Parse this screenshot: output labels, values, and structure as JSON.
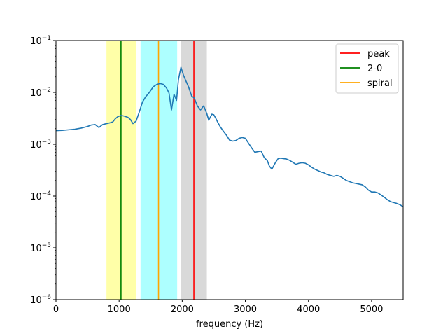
{
  "chart_data": {
    "type": "line",
    "title": "",
    "xlabel": "frequency (Hz)",
    "ylabel": "",
    "xlim": [
      0,
      5500
    ],
    "ylim": [
      1e-06,
      0.1
    ],
    "yscale": "log",
    "grid": false,
    "legend_placement": "top-right",
    "x_ticks": [
      {
        "value": 0,
        "label": "0"
      },
      {
        "value": 1000,
        "label": "1000"
      },
      {
        "value": 2000,
        "label": "2000"
      },
      {
        "value": 3000,
        "label": "3000"
      },
      {
        "value": 4000,
        "label": "4000"
      },
      {
        "value": 5000,
        "label": "5000"
      }
    ],
    "y_ticks": [
      {
        "value": 1e-06,
        "base": "10",
        "exp": "−6"
      },
      {
        "value": 1e-05,
        "base": "10",
        "exp": "−5"
      },
      {
        "value": 0.0001,
        "base": "10",
        "exp": "−4"
      },
      {
        "value": 0.001,
        "base": "10",
        "exp": "−3"
      },
      {
        "value": 0.01,
        "base": "10",
        "exp": "−2"
      },
      {
        "value": 0.1,
        "base": "10",
        "exp": "−1"
      }
    ],
    "bands": [
      {
        "x0": 800,
        "x1": 1270,
        "color": "#ffff99",
        "opacity": 0.85
      },
      {
        "x0": 1340,
        "x1": 1920,
        "color": "#99ffff",
        "opacity": 0.8
      },
      {
        "x0": 1980,
        "x1": 2390,
        "color": "#cccccc",
        "opacity": 0.75
      }
    ],
    "vlines": [
      {
        "name": "peak",
        "x": 2185,
        "color": "#ff0000"
      },
      {
        "name": "2-0",
        "x": 1030,
        "color": "#008000"
      },
      {
        "name": "spiral",
        "x": 1625,
        "color": "#ffa500"
      }
    ],
    "series": [
      {
        "color": "#1f77b4",
        "x": [
          0,
          100,
          200,
          300,
          400,
          500,
          560,
          620,
          680,
          740,
          800,
          860,
          900,
          940,
          980,
          1030,
          1080,
          1140,
          1180,
          1220,
          1270,
          1320,
          1370,
          1420,
          1480,
          1540,
          1600,
          1650,
          1700,
          1750,
          1790,
          1830,
          1870,
          1910,
          1940,
          1980,
          2020,
          2060,
          2100,
          2150,
          2190,
          2240,
          2290,
          2340,
          2390,
          2420,
          2470,
          2500,
          2530,
          2560,
          2600,
          2650,
          2700,
          2750,
          2800,
          2850,
          2900,
          2950,
          3000,
          3050,
          3100,
          3150,
          3200,
          3250,
          3300,
          3350,
          3380,
          3420,
          3480,
          3520,
          3560,
          3600,
          3650,
          3700,
          3750,
          3800,
          3850,
          3900,
          3950,
          4000,
          4050,
          4100,
          4150,
          4200,
          4250,
          4300,
          4350,
          4400,
          4450,
          4500,
          4550,
          4600,
          4650,
          4700,
          4750,
          4800,
          4850,
          4900,
          4950,
          5000,
          5050,
          5100,
          5150,
          5200,
          5250,
          5300,
          5350,
          5400,
          5450,
          5500
        ],
        "y": [
          0.00183,
          0.00185,
          0.0019,
          0.00195,
          0.00205,
          0.0022,
          0.00235,
          0.0024,
          0.0021,
          0.0024,
          0.0025,
          0.0026,
          0.0027,
          0.0031,
          0.0034,
          0.0036,
          0.0035,
          0.0033,
          0.003,
          0.0025,
          0.0028,
          0.0042,
          0.0065,
          0.0082,
          0.01,
          0.0128,
          0.0143,
          0.0148,
          0.0143,
          0.0122,
          0.0098,
          0.0046,
          0.0092,
          0.007,
          0.0175,
          0.0305,
          0.0215,
          0.0165,
          0.0128,
          0.0085,
          0.0078,
          0.0055,
          0.0046,
          0.0055,
          0.0039,
          0.0029,
          0.0038,
          0.0037,
          0.0032,
          0.0027,
          0.0022,
          0.0018,
          0.0015,
          0.0012,
          0.00115,
          0.00118,
          0.0013,
          0.00135,
          0.0013,
          0.00105,
          0.00085,
          0.0007,
          0.00072,
          0.00074,
          0.00055,
          0.00048,
          0.00038,
          0.00033,
          0.00045,
          0.00053,
          0.00054,
          0.00053,
          0.00052,
          0.00049,
          0.00045,
          0.00041,
          0.00043,
          0.00044,
          0.00043,
          0.0004,
          0.00036,
          0.00033,
          0.00031,
          0.00029,
          0.00028,
          0.00026,
          0.00025,
          0.00024,
          0.00025,
          0.00024,
          0.00022,
          0.0002,
          0.00019,
          0.00018,
          0.000175,
          0.00017,
          0.000165,
          0.00015,
          0.00013,
          0.00012,
          0.00012,
          0.000115,
          0.000105,
          9.5e-05,
          8.5e-05,
          7.8e-05,
          7.5e-05,
          7.2e-05,
          6.8e-05,
          6.2e-05
        ]
      }
    ],
    "legend": [
      {
        "label": "peak",
        "color": "#ff0000"
      },
      {
        "label": "2-0",
        "color": "#008000"
      },
      {
        "label": "spiral",
        "color": "#ffa500"
      }
    ]
  }
}
